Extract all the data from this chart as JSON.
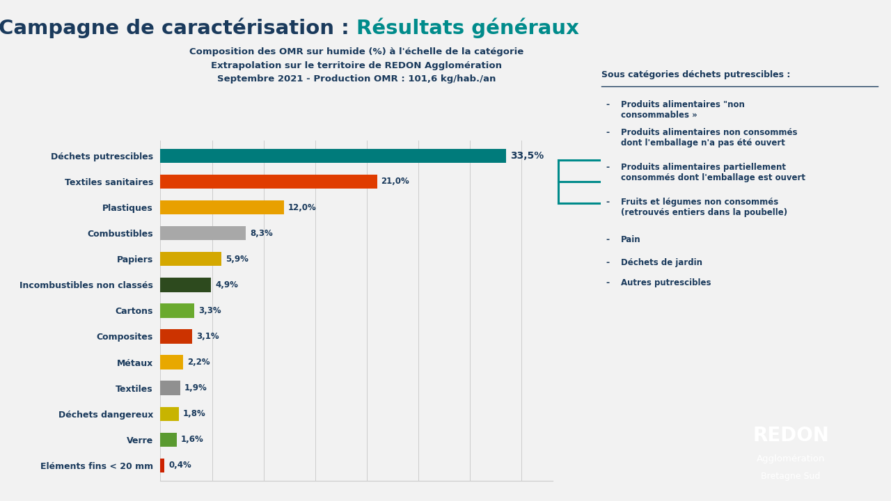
{
  "title_black": "Campagne de caractérisation : ",
  "title_teal": "Résultats généraux",
  "subtitle_line1": "Composition des OMR sur humide (%) à l'échelle de la catégorie",
  "subtitle_line2": "Extrapolation sur le territoire de REDON Agglomération",
  "subtitle_line3": "Septembre 2021 - Production OMR : 101,6 kg/hab./an",
  "categories": [
    "Déchets putrescibles",
    "Textiles sanitaires",
    "Plastiques",
    "Combustibles",
    "Papiers",
    "Incombustibles non classés",
    "Cartons",
    "Composites",
    "Métaux",
    "Textiles",
    "Déchets dangereux",
    "Verre",
    "Eléments fins < 20 mm"
  ],
  "values": [
    33.5,
    21.0,
    12.0,
    8.3,
    5.9,
    4.9,
    3.3,
    3.1,
    2.2,
    1.9,
    1.8,
    1.6,
    0.4
  ],
  "labels": [
    "33,5%",
    "21,0%",
    "12,0%",
    "8,3%",
    "5,9%",
    "4,9%",
    "3,3%",
    "3,1%",
    "2,2%",
    "1,9%",
    "1,8%",
    "1,6%",
    "0,4%"
  ],
  "colors": [
    "#007b7b",
    "#e03c00",
    "#e8a000",
    "#a8a8a8",
    "#d4a800",
    "#2d4a1e",
    "#6aaa2e",
    "#cc3300",
    "#e8a800",
    "#909090",
    "#c8b400",
    "#5a9a30",
    "#cc2200"
  ],
  "bg_color": "#f2f2f2",
  "title_color_dark": "#1a3a5c",
  "title_color_teal": "#008b8b",
  "sidebar_title": "Sous catégories déchets putrescibles :",
  "sidebar_items": [
    "Produits alimentaires \"non\nconsommables »",
    "Produits alimentaires non consommés\ndont l'emballage n'a pas été ouvert",
    "Produits alimentaires partiellement\nconsommés dont l'emballage est ouvert",
    "Fruits et légumes non consommés\n(retrouvés entiers dans la poubelle)",
    "Pain",
    "Déchets de jardin",
    "Autres putrescibles"
  ],
  "xlim": [
    0,
    38
  ],
  "bar_height": 0.55
}
